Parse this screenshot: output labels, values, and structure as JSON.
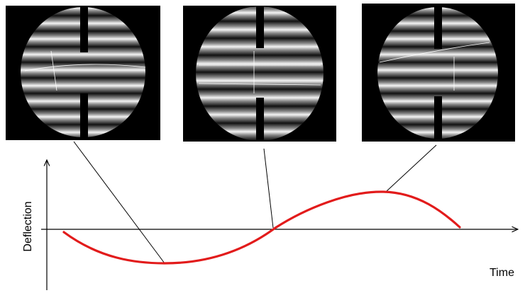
{
  "axes": {
    "y_label": "Deflection",
    "x_label": "Time"
  }
}
